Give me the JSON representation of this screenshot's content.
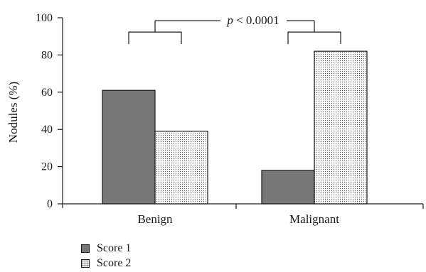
{
  "chart_data": {
    "type": "bar",
    "categories": [
      "Benign",
      "Malignant"
    ],
    "series": [
      {
        "name": "Score 1",
        "values": [
          61,
          18
        ],
        "color": "#777777",
        "fill": "solid"
      },
      {
        "name": "Score 2",
        "values": [
          39,
          82
        ],
        "color": "#f2f2f2",
        "fill": "dotted"
      }
    ],
    "ylabel": "Nodules (%)",
    "xlabel": "",
    "title": "",
    "ylim": [
      0,
      100
    ],
    "yticks": [
      0,
      20,
      40,
      60,
      80,
      100
    ],
    "grid": false,
    "legend_position": "bottom-left",
    "annotation": {
      "text_italic": "p",
      "text_rest": " < 0.0001"
    }
  }
}
